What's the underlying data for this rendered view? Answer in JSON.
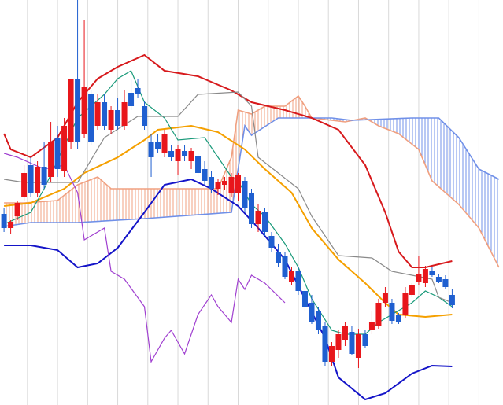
{
  "chart_data": {
    "type": "candlestick",
    "xlim": [
      -0.6,
      74.6
    ],
    "xticks": [
      3.5,
      8,
      12.5,
      17,
      21.5,
      26,
      30.5,
      35,
      39.5,
      44,
      48.5,
      53,
      57.5,
      62,
      66.5,
      71
    ],
    "ylim": [
      0,
      515
    ],
    "grid": true,
    "grid_color": "#d9d9d9",
    "up_color": "#e8161b",
    "down_color": "#1f5fd0",
    "open": [
      243,
      225,
      240,
      265,
      305,
      270,
      303,
      290,
      340,
      297,
      335,
      415,
      345,
      395,
      355,
      385,
      350,
      375,
      355,
      397,
      403,
      380,
      335,
      335,
      320,
      323,
      310,
      323,
      310,
      317,
      300,
      290,
      275,
      280,
      270,
      270,
      285,
      270,
      230,
      245,
      215,
      195,
      190,
      157,
      170,
      145,
      130,
      120,
      100,
      55,
      70,
      83,
      93,
      60,
      90,
      95,
      100,
      130,
      130,
      115,
      115,
      140,
      157,
      155,
      170,
      163,
      160,
      140
    ],
    "high": [
      250,
      235,
      260,
      305,
      315,
      310,
      335,
      360,
      355,
      365,
      415,
      515,
      490,
      400,
      395,
      395,
      380,
      390,
      400,
      415,
      415,
      387,
      345,
      345,
      350,
      330,
      330,
      330,
      327,
      320,
      310,
      297,
      287,
      290,
      295,
      295,
      290,
      275,
      255,
      250,
      220,
      205,
      195,
      175,
      175,
      150,
      140,
      125,
      105,
      80,
      95,
      105,
      100,
      97,
      95,
      120,
      135,
      150,
      135,
      117,
      150,
      155,
      190,
      177,
      175,
      167,
      165,
      147
    ],
    "low": [
      220,
      217,
      235,
      260,
      265,
      265,
      275,
      283,
      290,
      290,
      325,
      325,
      340,
      330,
      350,
      350,
      345,
      350,
      350,
      375,
      390,
      350,
      290,
      320,
      315,
      310,
      293,
      310,
      300,
      290,
      280,
      270,
      267,
      273,
      265,
      260,
      245,
      225,
      220,
      215,
      195,
      175,
      160,
      153,
      140,
      120,
      103,
      90,
      50,
      50,
      60,
      75,
      63,
      47,
      73,
      90,
      97,
      125,
      103,
      103,
      110,
      137,
      153,
      150,
      163,
      155,
      147,
      123
    ],
    "close": [
      225,
      233,
      257,
      295,
      270,
      303,
      280,
      335,
      300,
      355,
      415,
      335,
      405,
      335,
      385,
      355,
      375,
      355,
      385,
      380,
      395,
      355,
      315,
      325,
      345,
      315,
      325,
      317,
      323,
      295,
      285,
      275,
      283,
      285,
      290,
      293,
      250,
      230,
      247,
      220,
      200,
      180,
      163,
      170,
      145,
      125,
      105,
      95,
      55,
      75,
      90,
      100,
      65,
      90,
      75,
      105,
      130,
      143,
      107,
      105,
      143,
      153,
      167,
      173,
      165,
      157,
      150,
      127
    ],
    "lines": [
      {
        "color": "#d7191c",
        "x": [
          0,
          1,
          4,
          8,
          11,
          14,
          17,
          21,
          24,
          29,
          34,
          37,
          42,
          46,
          50,
          54,
          57,
          59,
          61,
          63,
          67
        ],
        "values": [
          345,
          325,
          315,
          340,
          385,
          415,
          430,
          445,
          425,
          418,
          400,
          385,
          375,
          365,
          350,
          305,
          245,
          195,
          175,
          175,
          183
        ]
      },
      {
        "color": "#1414c8",
        "x": [
          0,
          4,
          8,
          11,
          14,
          17,
          21,
          24,
          28,
          31,
          35,
          38,
          42,
          45,
          48,
          50,
          54,
          57,
          61,
          64,
          67
        ],
        "values": [
          203,
          203,
          197,
          175,
          180,
          200,
          245,
          280,
          287,
          275,
          253,
          225,
          185,
          135,
          85,
          35,
          7,
          15,
          40,
          50,
          49
        ]
      },
      {
        "color": "#f5a000",
        "x": [
          0,
          4,
          9,
          12,
          17,
          21,
          23,
          28,
          32,
          36,
          39,
          43,
          46,
          50,
          54,
          57,
          59,
          63,
          67
        ],
        "values": [
          253,
          257,
          275,
          295,
          315,
          337,
          350,
          355,
          347,
          325,
          300,
          270,
          225,
          185,
          155,
          130,
          115,
          112,
          115
        ]
      },
      {
        "color": "#1a9a7a",
        "x": [
          0,
          4,
          6,
          11,
          15,
          17,
          19,
          21,
          24,
          26,
          30,
          32,
          34,
          35,
          37,
          39,
          42,
          44,
          46,
          49,
          51,
          54,
          56,
          58,
          61,
          63,
          65,
          67
        ],
        "values": [
          230,
          245,
          275,
          365,
          395,
          415,
          425,
          385,
          365,
          337,
          340,
          315,
          290,
          285,
          255,
          240,
          205,
          175,
          135,
          95,
          90,
          90,
          105,
          115,
          130,
          145,
          137,
          125
        ]
      },
      {
        "color": "#8a8a8a",
        "x": [
          0,
          3,
          8,
          11,
          15,
          20,
          26,
          29,
          35,
          37,
          38,
          41,
          44,
          46,
          50,
          55,
          58,
          61,
          64,
          65,
          67
        ],
        "values": [
          287,
          283,
          283,
          283,
          340,
          367,
          367,
          395,
          398,
          380,
          315,
          295,
          275,
          240,
          190,
          187,
          170,
          165,
          160,
          137,
          130
        ]
      },
      {
        "color": "#a040d0",
        "x": [
          0,
          2,
          6,
          9,
          11,
          12,
          15,
          16,
          18,
          21,
          22,
          24,
          25,
          27,
          29,
          31,
          32,
          34,
          35,
          36,
          37,
          39,
          42
        ],
        "values": [
          320,
          315,
          300,
          305,
          270,
          210,
          225,
          170,
          160,
          125,
          55,
          85,
          95,
          65,
          115,
          140,
          125,
          105,
          160,
          147,
          165,
          155,
          130
        ]
      }
    ],
    "cloud": {
      "up_color": "#f0a080",
      "down_color": "#7090e8",
      "a": {
        "color": "#f0a080",
        "x": [
          0,
          3,
          8,
          11,
          14,
          16,
          21,
          25,
          32,
          34,
          35,
          37,
          39,
          42,
          44,
          45,
          46,
          51,
          54,
          56,
          59,
          62,
          64,
          68,
          71,
          74
        ],
        "values": [
          257,
          257,
          260,
          280,
          290,
          275,
          275,
          275,
          275,
          315,
          375,
          370,
          380,
          380,
          393,
          380,
          365,
          360,
          365,
          355,
          345,
          325,
          285,
          255,
          225,
          175
        ]
      },
      "b": {
        "color": "#7090e8",
        "x": [
          0,
          4,
          11,
          21,
          34,
          36,
          37,
          41,
          49,
          52,
          61,
          65,
          68,
          71,
          74
        ],
        "values": [
          227,
          232,
          232,
          237,
          245,
          355,
          343,
          365,
          365,
          362,
          365,
          365,
          340,
          300,
          287
        ]
      }
    }
  }
}
